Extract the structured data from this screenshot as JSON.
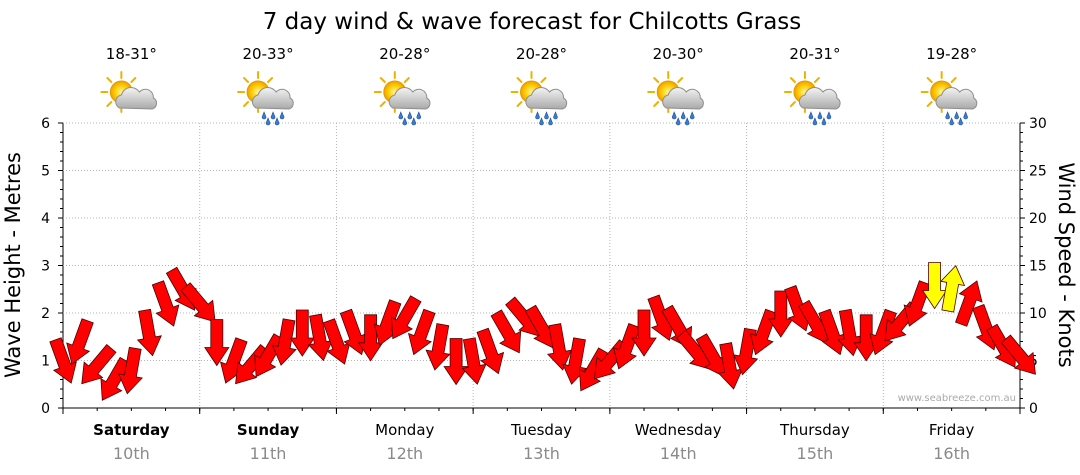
{
  "chart_data": {
    "type": "scatter",
    "title": "7 day wind & wave forecast for Chilcotts Grass",
    "ylabel_left": "Wave Height - Metres",
    "ylabel_right": "Wind Speed - Knots",
    "y_left_range": [
      0,
      6
    ],
    "y_left_ticks": [
      "0",
      "1",
      "2",
      "3",
      "4",
      "5",
      "6"
    ],
    "y_right_range": [
      0,
      30
    ],
    "y_right_ticks": [
      "0",
      "5",
      "10",
      "15",
      "20",
      "25",
      "30"
    ],
    "grid": true,
    "x_hours_range": [
      0,
      168
    ],
    "days": [
      {
        "name": "Saturday",
        "date": "10th",
        "temp": "18-31°",
        "weather": "partly-cloudy",
        "bold": true
      },
      {
        "name": "Sunday",
        "date": "11th",
        "temp": "20-33°",
        "weather": "showers",
        "bold": true
      },
      {
        "name": "Monday",
        "date": "12th",
        "temp": "20-28°",
        "weather": "showers",
        "bold": false
      },
      {
        "name": "Tuesday",
        "date": "13th",
        "temp": "20-28°",
        "weather": "showers",
        "bold": false
      },
      {
        "name": "Wednesday",
        "date": "14th",
        "temp": "20-30°",
        "weather": "showers",
        "bold": false
      },
      {
        "name": "Thursday",
        "date": "15th",
        "temp": "20-31°",
        "weather": "showers",
        "bold": false
      },
      {
        "name": "Friday",
        "date": "16th",
        "temp": "19-28°",
        "weather": "showers",
        "bold": false
      }
    ],
    "wind_series": {
      "name": "Wind Speed (Knots)",
      "hours": [
        0,
        3,
        6,
        9,
        12,
        15,
        18,
        21,
        24,
        27,
        30,
        33,
        36,
        39,
        42,
        45,
        48,
        51,
        54,
        57,
        60,
        63,
        66,
        69,
        72,
        75,
        78,
        81,
        84,
        87,
        90,
        93,
        96,
        99,
        102,
        105,
        108,
        111,
        114,
        117,
        120,
        123,
        126,
        129,
        132,
        135,
        138,
        141,
        144,
        147,
        150,
        153,
        156,
        159,
        162,
        165,
        168
      ],
      "knots": [
        5,
        7,
        4.5,
        3,
        4,
        8,
        11,
        12.5,
        11,
        7,
        5,
        4.5,
        5.5,
        7,
        8,
        7.5,
        7,
        8,
        7.5,
        9,
        9.5,
        8,
        6.5,
        5,
        5,
        6,
        8,
        9.5,
        8.5,
        6.5,
        5,
        4,
        5,
        6.5,
        8,
        9.5,
        8.5,
        6,
        5.5,
        4.5,
        6,
        8,
        10,
        10.5,
        9,
        8,
        8,
        7.5,
        8,
        9,
        11,
        13,
        12.5,
        11,
        8.5,
        6.5,
        5.5
      ],
      "directions_deg": [
        160,
        200,
        220,
        210,
        190,
        170,
        160,
        150,
        140,
        180,
        200,
        220,
        210,
        190,
        180,
        170,
        160,
        160,
        180,
        200,
        210,
        200,
        190,
        180,
        170,
        160,
        150,
        140,
        150,
        170,
        190,
        210,
        220,
        200,
        180,
        160,
        150,
        140,
        150,
        170,
        190,
        200,
        180,
        160,
        150,
        160,
        170,
        180,
        200,
        220,
        200,
        180,
        10,
        20,
        160,
        150,
        140
      ],
      "color": "#ff0000",
      "highlight_color": "#ffff00",
      "highlight_indices": [
        51,
        52
      ]
    }
  },
  "watermark": "www.seabreeze.com.au"
}
